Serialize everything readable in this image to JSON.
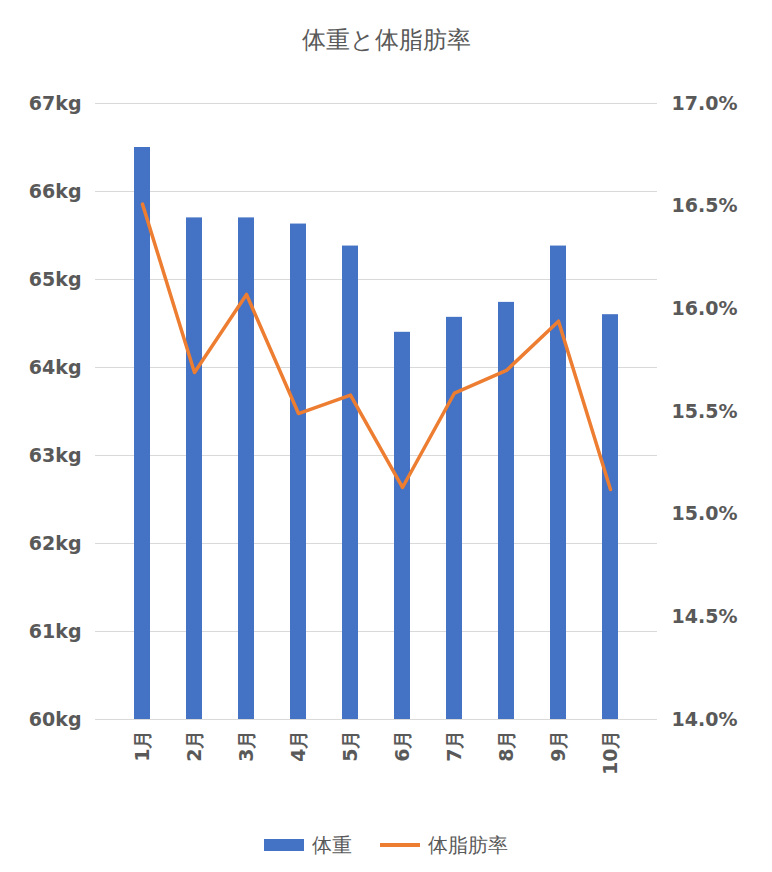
{
  "chart_data": {
    "type": "bar",
    "title": "体重と体脂肪率",
    "categories": [
      "1月",
      "2月",
      "3月",
      "4月",
      "5月",
      "6月",
      "7月",
      "8月",
      "9月",
      "10月"
    ],
    "series": [
      {
        "name": "体重",
        "type": "bar",
        "color": "#4472c4",
        "values": [
          66.5,
          65.7,
          65.7,
          65.63,
          65.38,
          64.4,
          64.57,
          64.74,
          65.38,
          64.6
        ]
      },
      {
        "name": "体脂肪率",
        "type": "line",
        "axis": "y2",
        "color": "#ed7d31",
        "values": [
          16.51,
          15.69,
          16.07,
          15.49,
          15.58,
          15.13,
          15.59,
          15.7,
          15.94,
          15.12
        ]
      }
    ],
    "ylim": [
      60,
      67
    ],
    "yticks": [
      {
        "value": 60,
        "label": "60kg"
      },
      {
        "value": 61,
        "label": "61kg"
      },
      {
        "value": 62,
        "label": "62kg"
      },
      {
        "value": 63,
        "label": "63kg"
      },
      {
        "value": 64,
        "label": "64kg"
      },
      {
        "value": 65,
        "label": "65kg"
      },
      {
        "value": 66,
        "label": "66kg"
      },
      {
        "value": 67,
        "label": "67kg"
      }
    ],
    "y2lim": [
      14,
      17
    ],
    "y2ticks": [
      {
        "value": 14,
        "label": "14.0%"
      },
      {
        "value": 14.5,
        "label": "14.5%"
      },
      {
        "value": 15,
        "label": "15.0%"
      },
      {
        "value": 15.5,
        "label": "15.5%"
      },
      {
        "value": 16,
        "label": "16.0%"
      },
      {
        "value": 16.5,
        "label": "16.5%"
      },
      {
        "value": 17,
        "label": "17.0%"
      }
    ],
    "grid": true,
    "legend": "bottom"
  }
}
